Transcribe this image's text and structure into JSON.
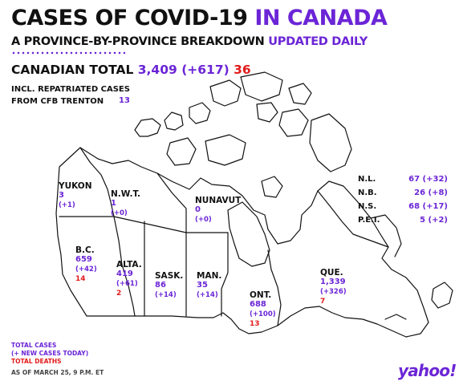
{
  "title": {
    "main": "CASES OF COVID-19",
    "accent": "IN CANADA"
  },
  "subtitle": {
    "main": "A PROVINCE-BY-PROVINCE BREAKDOWN",
    "accent": "UPDATED DAILY"
  },
  "national": {
    "label": "CANADIAN TOTAL",
    "cases": "3,409",
    "new_cases": "(+617)",
    "deaths": "36"
  },
  "repatriated": {
    "line1": "INCL. REPATRIATED CASES",
    "line2": "FROM CFB TRENTON",
    "value": "13"
  },
  "provinces": {
    "yukon": {
      "name": "YUKON",
      "cases": "3",
      "new": "(+1)"
    },
    "nwt": {
      "name": "N.W.T.",
      "cases": "1",
      "new": "(+0)"
    },
    "nunavut": {
      "name": "NUNAVUT",
      "cases": "0",
      "new": "(+0)"
    },
    "bc": {
      "name": "B.C.",
      "cases": "659",
      "new": "(+42)",
      "deaths": "14"
    },
    "alta": {
      "name": "ALTA.",
      "cases": "419",
      "new": "(+61)",
      "deaths": "2"
    },
    "sask": {
      "name": "SASK.",
      "cases": "86",
      "new": "(+14)"
    },
    "man": {
      "name": "MAN.",
      "cases": "35",
      "new": "(+14)"
    },
    "ont": {
      "name": "ONT.",
      "cases": "688",
      "new": "(+100)",
      "deaths": "13"
    },
    "que": {
      "name": "QUE.",
      "cases": "1,339",
      "new": "(+326)",
      "deaths": "7"
    }
  },
  "atlantic": [
    {
      "name": "N.L.",
      "value": "67 (+32)"
    },
    {
      "name": "N.B.",
      "value": "26 (+8)"
    },
    {
      "name": "N.S.",
      "value": "68 (+17)"
    },
    {
      "name": "P.E.I.",
      "value": "5 (+2)"
    }
  ],
  "legend": {
    "total_cases": "TOTAL CASES",
    "new_cases": "(+ NEW CASES TODAY)",
    "total_deaths": "TOTAL DEATHS",
    "as_of": "AS OF MARCH 25, 9 P.M. ET"
  },
  "brand": "yahoo!",
  "colors": {
    "accent": "#6b25d6",
    "deaths": "#e21b1b",
    "text": "#111111"
  }
}
